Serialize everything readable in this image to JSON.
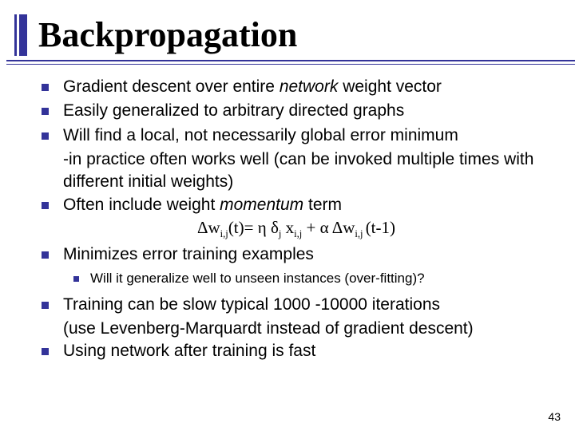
{
  "title": "Backpropagation",
  "bullets": {
    "b1_pre": "Gradient descent over entire ",
    "b1_italic": "network",
    "b1_post": " weight vector",
    "b2": "Easily generalized to arbitrary directed graphs",
    "b3": "Will find a local, not necessarily global error minimum",
    "b3_cont": "-in practice often works well (can be invoked multiple times with different initial weights)",
    "b4_pre": "Often include weight ",
    "b4_italic": "momentum",
    "b4_post": " term",
    "b5": "Minimizes error training examples",
    "sub1": "Will it generalize well to unseen instances (over-fitting)?",
    "b6": "Training can be slow typical 1000 -10000 iterations",
    "b6_cont": "(use Levenberg-Marquardt instead of gradient descent)",
    "b7": "Using network after training is fast"
  },
  "formula": {
    "delta1": "Δ",
    "w1": "w",
    "sub1": "i,j",
    "t1": "(t)= η δ",
    "subj": "j",
    "x": " x",
    "subij2": "i,j",
    "plus": " + α ",
    "delta2": "Δ",
    "w2": "w",
    "sub2": "i,j ",
    "t2": "(t-1)"
  },
  "pagenum": "43",
  "colors": {
    "accent": "#333399",
    "text": "#000000",
    "background": "#ffffff"
  }
}
